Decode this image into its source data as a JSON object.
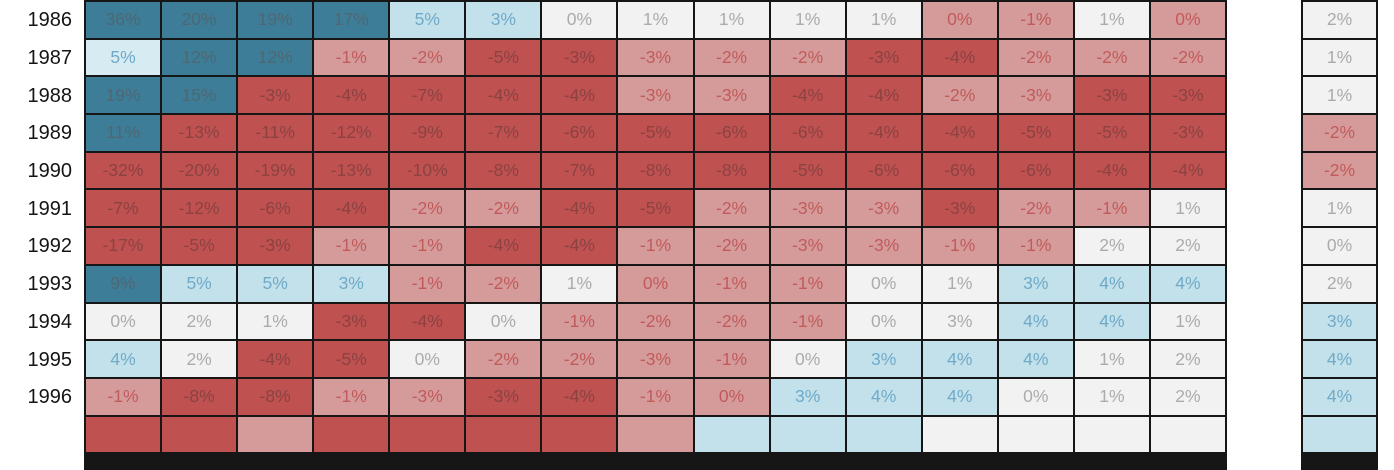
{
  "chart_data": {
    "type": "heatmap",
    "unit": "%",
    "title": "",
    "row_labels": [
      "1986",
      "1987",
      "1988",
      "1989",
      "1990",
      "1991",
      "1992",
      "1993",
      "1994",
      "1995",
      "1996"
    ],
    "num_columns": 15,
    "values": [
      [
        36,
        20,
        19,
        17,
        5,
        3,
        0,
        1,
        1,
        1,
        1,
        0,
        -1,
        1,
        0
      ],
      [
        5,
        12,
        12,
        -1,
        -2,
        -5,
        -3,
        -3,
        -2,
        -2,
        -3,
        -4,
        -2,
        -2,
        -2
      ],
      [
        19,
        15,
        -3,
        -4,
        -7,
        -4,
        -4,
        -3,
        -3,
        -4,
        -4,
        -2,
        -3,
        -3,
        -3
      ],
      [
        11,
        -13,
        -11,
        -12,
        -9,
        -7,
        -6,
        -5,
        -6,
        -6,
        -4,
        -4,
        -5,
        -5,
        -3
      ],
      [
        -32,
        -20,
        -19,
        -13,
        -10,
        -8,
        -7,
        -8,
        -8,
        -5,
        -6,
        -6,
        -6,
        -4,
        -4
      ],
      [
        -7,
        -12,
        -6,
        -4,
        -2,
        -2,
        -4,
        -5,
        -2,
        -3,
        -3,
        -3,
        -2,
        -1,
        1
      ],
      [
        -17,
        -5,
        -3,
        -1,
        -1,
        -4,
        -4,
        -1,
        -2,
        -3,
        -3,
        -1,
        -1,
        2,
        2
      ],
      [
        9,
        5,
        5,
        3,
        -1,
        -2,
        1,
        0,
        -1,
        -1,
        0,
        1,
        3,
        4,
        4
      ],
      [
        0,
        2,
        1,
        -3,
        -4,
        0,
        -1,
        -2,
        -2,
        -1,
        0,
        3,
        4,
        4,
        1
      ],
      [
        4,
        2,
        -4,
        -5,
        0,
        -2,
        -2,
        -3,
        -1,
        0,
        3,
        4,
        4,
        1,
        2
      ],
      [
        -1,
        -8,
        -8,
        -1,
        -3,
        -3,
        -4,
        -1,
        0,
        3,
        4,
        4,
        0,
        1,
        2
      ]
    ],
    "cell_tones": [
      [
        "teal",
        "teal",
        "teal",
        "teal",
        "blue",
        "blue",
        "white",
        "white",
        "white",
        "white",
        "white",
        "pink",
        "pink",
        "white",
        "pink"
      ],
      [
        "paleblue",
        "teal",
        "teal",
        "pink",
        "pink",
        "red",
        "red",
        "pink",
        "pink",
        "pink",
        "red",
        "red",
        "pink",
        "pink",
        "pink"
      ],
      [
        "teal",
        "teal",
        "red",
        "red",
        "red",
        "red",
        "red",
        "pink",
        "pink",
        "red",
        "red",
        "pink",
        "pink",
        "red",
        "red"
      ],
      [
        "teal",
        "red",
        "red",
        "red",
        "red",
        "red",
        "red",
        "red",
        "red",
        "red",
        "red",
        "red",
        "red",
        "red",
        "red"
      ],
      [
        "red",
        "red",
        "red",
        "red",
        "red",
        "red",
        "red",
        "red",
        "red",
        "red",
        "red",
        "red",
        "red",
        "red",
        "red"
      ],
      [
        "red",
        "red",
        "red",
        "red",
        "pink",
        "pink",
        "red",
        "red",
        "pink",
        "pink",
        "pink",
        "red",
        "pink",
        "pink",
        "white"
      ],
      [
        "red",
        "red",
        "red",
        "pink",
        "pink",
        "red",
        "red",
        "pink",
        "pink",
        "pink",
        "pink",
        "pink",
        "pink",
        "white",
        "white"
      ],
      [
        "teal",
        "blue",
        "blue",
        "blue",
        "pink",
        "pink",
        "white",
        "pink",
        "pink",
        "pink",
        "white",
        "white",
        "blue",
        "blue",
        "blue"
      ],
      [
        "white",
        "white",
        "white",
        "red",
        "red",
        "white",
        "pink",
        "pink",
        "pink",
        "pink",
        "white",
        "white",
        "blue",
        "blue",
        "white"
      ],
      [
        "blue",
        "white",
        "red",
        "red",
        "white",
        "pink",
        "pink",
        "pink",
        "pink",
        "white",
        "blue",
        "blue",
        "blue",
        "white",
        "white"
      ],
      [
        "pink",
        "red",
        "red",
        "pink",
        "pink",
        "red",
        "red",
        "pink",
        "pink",
        "blue",
        "blue",
        "blue",
        "white",
        "white",
        "white"
      ]
    ],
    "summary_values": [
      2,
      1,
      1,
      -2,
      -2,
      1,
      0,
      2,
      3,
      4,
      4
    ],
    "summary_tones": [
      "white",
      "white",
      "white",
      "pink",
      "pink",
      "white",
      "white",
      "white",
      "blue",
      "blue",
      "blue"
    ],
    "partial_row_tones": [
      "red",
      "red",
      "pink",
      "red",
      "red",
      "red",
      "red",
      "pink",
      "blue",
      "blue",
      "blue",
      "white",
      "white",
      "white",
      "white"
    ],
    "partial_row_summary_tone": "blue",
    "legend_position": "none",
    "grid": true
  },
  "palette": {
    "teal": {
      "bg": "#3E7D97",
      "text": "#4D6874"
    },
    "blue": {
      "bg": "#C3E1EB",
      "text": "#6FAAC8"
    },
    "paleblue": {
      "bg": "#D6EBF2",
      "text": "#6FAAC8"
    },
    "white": {
      "bg": "#F2F2F2",
      "text": "#ABABAB"
    },
    "pink": {
      "bg": "#D59B9B",
      "text": "#C25A5A"
    },
    "red": {
      "bg": "#BF5151",
      "text": "#8B4241"
    }
  },
  "grid_border_color": "#161616"
}
